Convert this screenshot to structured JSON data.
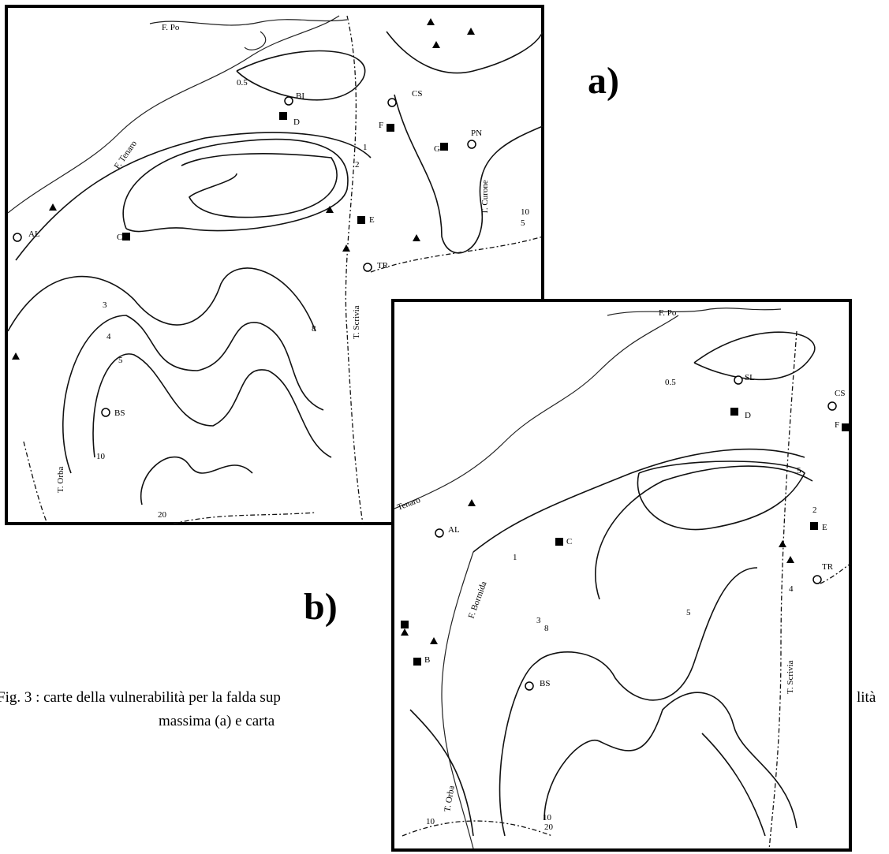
{
  "figure": {
    "caption": [
      "Fig. 3 : carte della vulnerabilità per la falda sup",
      "lità",
      "massima (a) e carta"
    ],
    "maps": [
      {
        "panel_label": "a)",
        "labels": [
          "F. Po",
          "F. Tenaro",
          "0.5",
          "BI",
          "D",
          "CS",
          "F",
          "G",
          "PN",
          "T. Curone",
          "1",
          "2",
          "E",
          "C",
          "AL",
          "TR",
          "T. Scrivia",
          "BS",
          "T. Orba",
          "20",
          "10",
          "3",
          "4",
          "5",
          "8",
          "10",
          "5"
        ]
      },
      {
        "panel_label": "b)",
        "labels": [
          "F. Po",
          "0.5",
          "SL",
          "D",
          "CS",
          "F",
          "E",
          "C",
          "AL",
          "TR",
          "F. Bormida",
          "T. Scrivia",
          "BS",
          "T. Orba",
          "B",
          "20",
          "10",
          "10",
          "1",
          "2",
          "3",
          "4",
          "5",
          "8",
          "5",
          "Tenaro"
        ]
      }
    ]
  }
}
